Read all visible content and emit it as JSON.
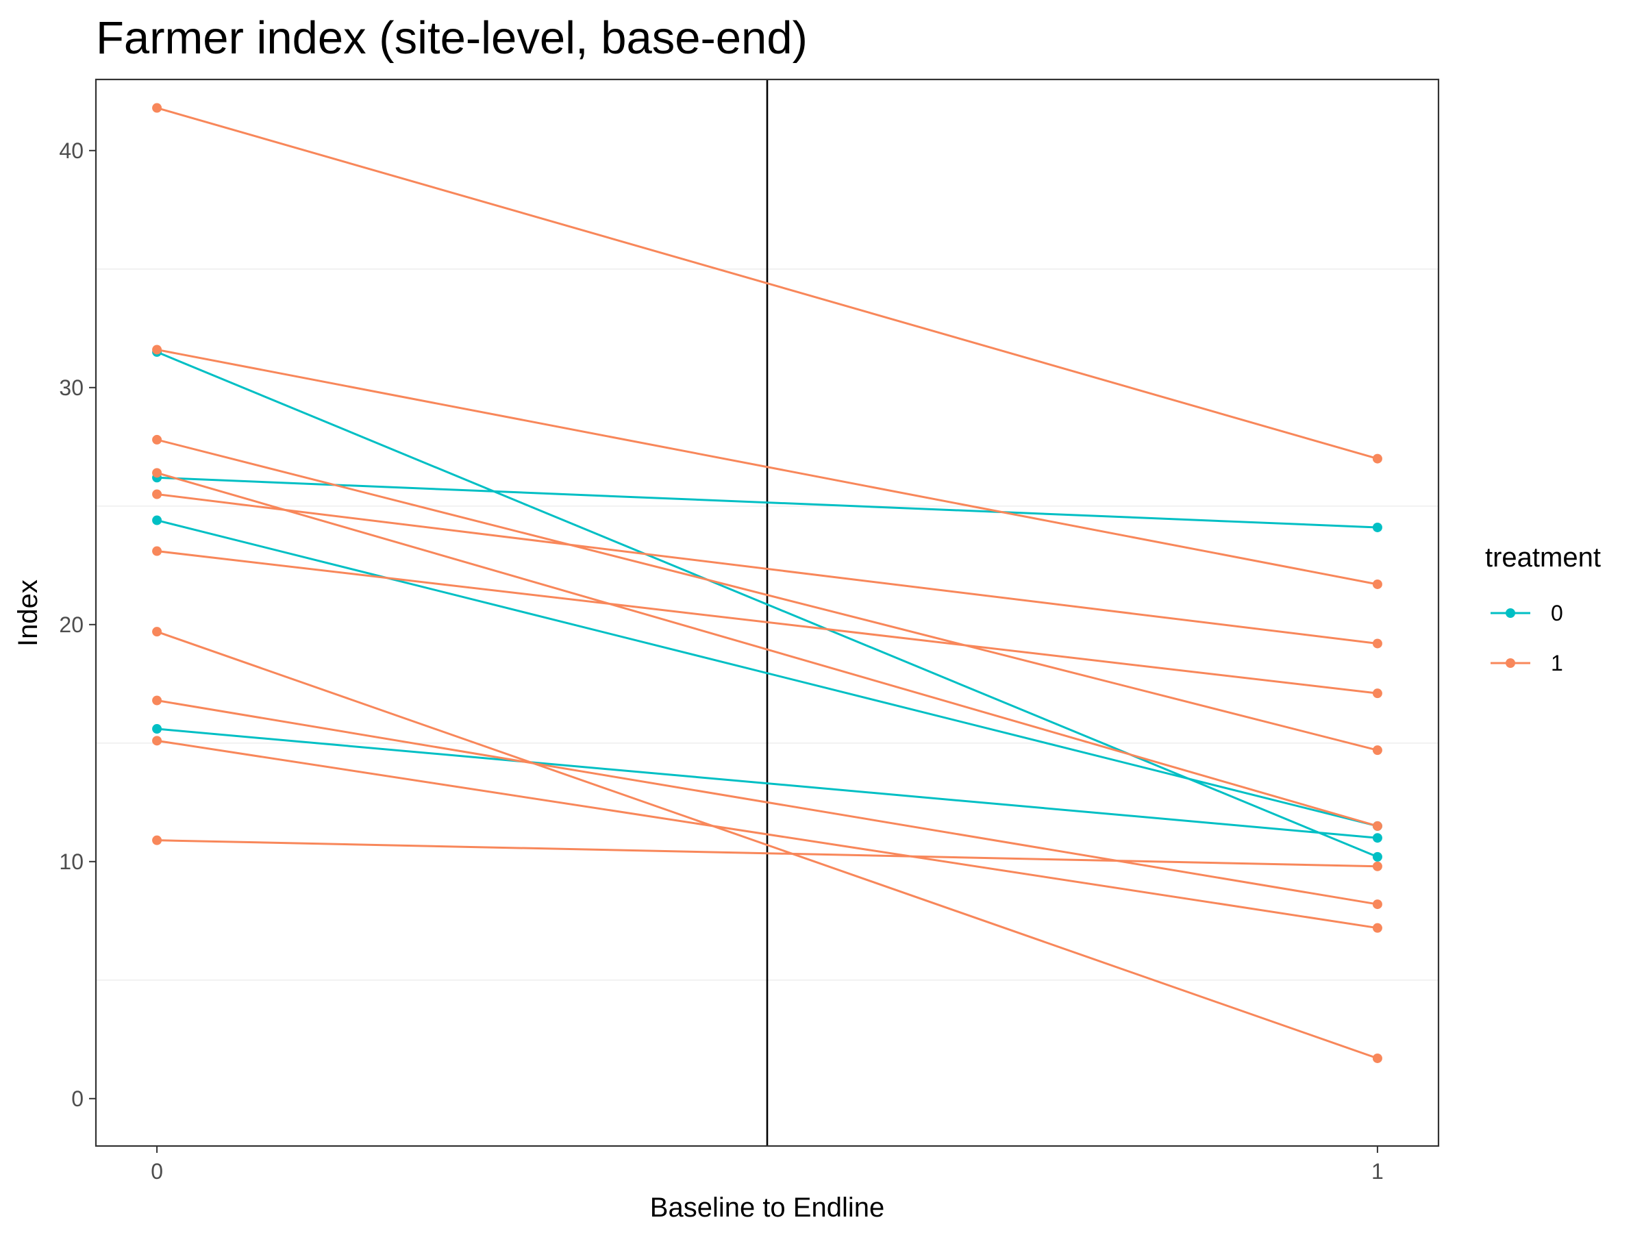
{
  "chart_data": {
    "type": "line",
    "title": "Farmer index (site-level, base-end)",
    "xlabel": "Baseline to Endline",
    "ylabel": "Index",
    "x": [
      0,
      1
    ],
    "x_ticks": [
      "0",
      "1"
    ],
    "xlim": [
      -0.05,
      1.05
    ],
    "ylim": [
      -2,
      43
    ],
    "y_ticks": [
      0,
      10,
      20,
      30,
      40
    ],
    "grid": true,
    "vline_x": 0.5,
    "legend": {
      "title": "treatment",
      "position": "right",
      "entries": [
        {
          "label": "0",
          "color": "#00bfc4"
        },
        {
          "label": "1",
          "color": "#f8875a"
        }
      ]
    },
    "series": [
      {
        "group": "0",
        "color": "#00bfc4",
        "values": [
          31.5,
          10.2
        ]
      },
      {
        "group": "0",
        "color": "#00bfc4",
        "values": [
          26.2,
          24.1
        ]
      },
      {
        "group": "0",
        "color": "#00bfc4",
        "values": [
          24.4,
          11.5
        ]
      },
      {
        "group": "0",
        "color": "#00bfc4",
        "values": [
          15.6,
          11.0
        ]
      },
      {
        "group": "1",
        "color": "#f8875a",
        "values": [
          41.8,
          27.0
        ]
      },
      {
        "group": "1",
        "color": "#f8875a",
        "values": [
          31.6,
          21.7
        ]
      },
      {
        "group": "1",
        "color": "#f8875a",
        "values": [
          27.8,
          14.7
        ]
      },
      {
        "group": "1",
        "color": "#f8875a",
        "values": [
          26.4,
          11.5
        ]
      },
      {
        "group": "1",
        "color": "#f8875a",
        "values": [
          25.5,
          19.2
        ]
      },
      {
        "group": "1",
        "color": "#f8875a",
        "values": [
          23.1,
          17.1
        ]
      },
      {
        "group": "1",
        "color": "#f8875a",
        "values": [
          19.7,
          1.7
        ]
      },
      {
        "group": "1",
        "color": "#f8875a",
        "values": [
          16.8,
          8.2
        ]
      },
      {
        "group": "1",
        "color": "#f8875a",
        "values": [
          15.1,
          7.2
        ]
      },
      {
        "group": "1",
        "color": "#f8875a",
        "values": [
          10.9,
          9.8
        ]
      }
    ]
  }
}
